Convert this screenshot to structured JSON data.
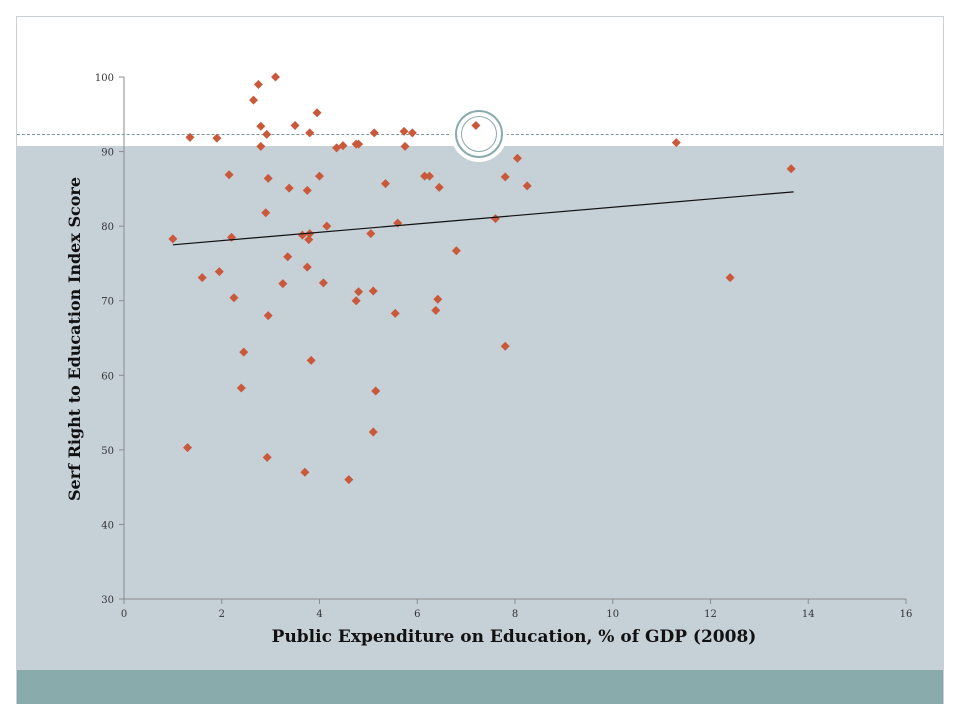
{
  "chart_data": {
    "type": "scatter",
    "title": "",
    "xlabel": "Public Expenditure on Education, % of GDP (2008)",
    "ylabel": "Serf Right to Education Index Score",
    "xlim": [
      0,
      16
    ],
    "ylim": [
      30,
      100
    ],
    "xticks": [
      0,
      2,
      4,
      6,
      8,
      10,
      12,
      14,
      16
    ],
    "yticks": [
      30,
      40,
      50,
      60,
      70,
      80,
      90,
      100
    ],
    "grid": false,
    "legend": "none",
    "marker_color": "#c9593a",
    "trendline": {
      "x": [
        1.0,
        13.7
      ],
      "y": [
        77.5,
        84.6
      ],
      "color": "#111111"
    },
    "points": [
      {
        "x": 1.0,
        "y": 78.3
      },
      {
        "x": 1.3,
        "y": 50.3
      },
      {
        "x": 1.35,
        "y": 91.9
      },
      {
        "x": 1.6,
        "y": 73.1
      },
      {
        "x": 1.9,
        "y": 91.8
      },
      {
        "x": 1.95,
        "y": 73.9
      },
      {
        "x": 2.15,
        "y": 86.9
      },
      {
        "x": 2.2,
        "y": 78.5
      },
      {
        "x": 2.25,
        "y": 70.4
      },
      {
        "x": 2.4,
        "y": 58.3
      },
      {
        "x": 2.45,
        "y": 63.1
      },
      {
        "x": 2.65,
        "y": 96.9
      },
      {
        "x": 2.75,
        "y": 99.0
      },
      {
        "x": 2.8,
        "y": 93.4
      },
      {
        "x": 2.8,
        "y": 90.7
      },
      {
        "x": 2.9,
        "y": 81.8
      },
      {
        "x": 2.92,
        "y": 92.3
      },
      {
        "x": 2.95,
        "y": 86.4
      },
      {
        "x": 2.95,
        "y": 68.0
      },
      {
        "x": 2.93,
        "y": 49.0
      },
      {
        "x": 3.1,
        "y": 100.0
      },
      {
        "x": 3.25,
        "y": 72.3
      },
      {
        "x": 3.35,
        "y": 75.9
      },
      {
        "x": 3.38,
        "y": 85.1
      },
      {
        "x": 3.5,
        "y": 93.5
      },
      {
        "x": 3.65,
        "y": 78.8
      },
      {
        "x": 3.7,
        "y": 47.0
      },
      {
        "x": 3.75,
        "y": 84.8
      },
      {
        "x": 3.75,
        "y": 74.5
      },
      {
        "x": 3.78,
        "y": 78.2
      },
      {
        "x": 3.8,
        "y": 79.0
      },
      {
        "x": 3.8,
        "y": 92.5
      },
      {
        "x": 3.83,
        "y": 62.0
      },
      {
        "x": 3.95,
        "y": 95.2
      },
      {
        "x": 4.0,
        "y": 86.7
      },
      {
        "x": 4.08,
        "y": 72.4
      },
      {
        "x": 4.15,
        "y": 80.0
      },
      {
        "x": 4.35,
        "y": 90.5
      },
      {
        "x": 4.48,
        "y": 90.8
      },
      {
        "x": 4.6,
        "y": 46.0
      },
      {
        "x": 4.75,
        "y": 70.0
      },
      {
        "x": 4.75,
        "y": 91.0
      },
      {
        "x": 4.8,
        "y": 71.2
      },
      {
        "x": 4.8,
        "y": 91.0
      },
      {
        "x": 5.05,
        "y": 79.0
      },
      {
        "x": 5.1,
        "y": 71.3
      },
      {
        "x": 5.1,
        "y": 52.4
      },
      {
        "x": 5.15,
        "y": 57.9
      },
      {
        "x": 5.12,
        "y": 92.5
      },
      {
        "x": 5.35,
        "y": 85.7
      },
      {
        "x": 5.55,
        "y": 68.3
      },
      {
        "x": 5.6,
        "y": 80.4
      },
      {
        "x": 5.73,
        "y": 92.7
      },
      {
        "x": 5.75,
        "y": 90.7
      },
      {
        "x": 5.9,
        "y": 92.5
      },
      {
        "x": 6.15,
        "y": 86.7
      },
      {
        "x": 6.25,
        "y": 86.7
      },
      {
        "x": 6.38,
        "y": 68.7
      },
      {
        "x": 6.42,
        "y": 70.2
      },
      {
        "x": 6.45,
        "y": 85.2
      },
      {
        "x": 6.8,
        "y": 76.7
      },
      {
        "x": 7.2,
        "y": 93.5
      },
      {
        "x": 7.6,
        "y": 81.0
      },
      {
        "x": 7.8,
        "y": 86.6
      },
      {
        "x": 7.8,
        "y": 63.9
      },
      {
        "x": 8.05,
        "y": 89.1
      },
      {
        "x": 8.25,
        "y": 85.4
      },
      {
        "x": 11.3,
        "y": 91.2
      },
      {
        "x": 12.4,
        "y": 73.1
      },
      {
        "x": 13.65,
        "y": 87.7
      }
    ]
  }
}
